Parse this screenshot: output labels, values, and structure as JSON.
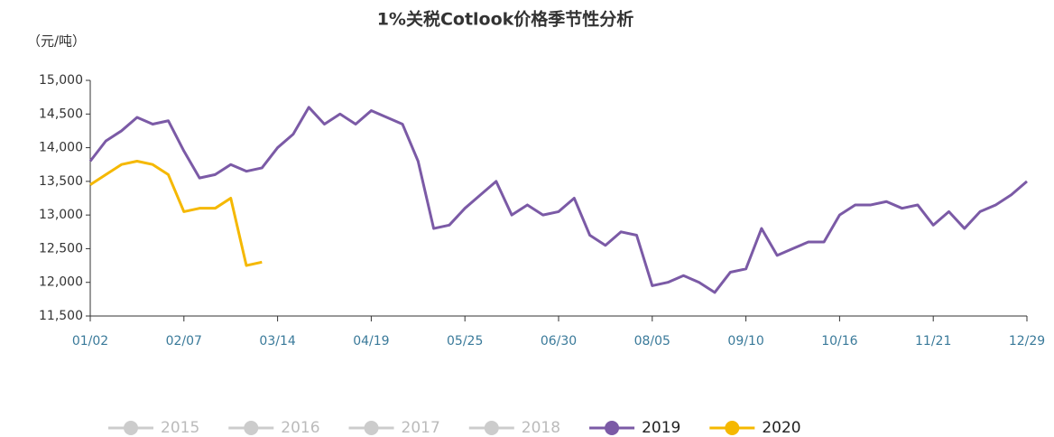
{
  "chart_data": {
    "type": "line",
    "title": "1%关税Cotlook价格季节性分析",
    "y_label": "（元/吨）",
    "categories": [
      "01/02",
      null,
      null,
      null,
      null,
      null,
      "02/07",
      null,
      null,
      null,
      null,
      null,
      "03/14",
      null,
      null,
      null,
      null,
      null,
      "04/19",
      null,
      null,
      null,
      null,
      null,
      "05/25",
      null,
      null,
      null,
      null,
      null,
      "06/30",
      null,
      null,
      null,
      null,
      null,
      "08/05",
      null,
      null,
      null,
      null,
      null,
      "09/10",
      null,
      null,
      null,
      null,
      null,
      "10/16",
      null,
      null,
      null,
      null,
      null,
      "11/21",
      null,
      null,
      null,
      null,
      null,
      "12/29"
    ],
    "series": [
      {
        "name": "2015",
        "color": "#cccccc",
        "values": [
          null,
          null,
          null,
          null,
          null,
          null,
          null,
          null,
          null,
          null,
          null,
          null,
          null,
          null,
          null,
          null,
          null,
          null,
          null,
          null,
          null,
          null,
          null,
          null,
          null,
          null,
          null,
          null,
          null,
          null,
          null,
          null,
          null,
          null,
          null,
          null,
          null,
          null,
          null,
          null,
          null,
          null,
          null,
          null,
          null,
          null,
          null,
          null,
          null,
          null,
          null,
          null,
          null,
          null,
          null,
          null,
          null,
          null,
          null,
          null,
          null
        ]
      },
      {
        "name": "2016",
        "color": "#cccccc",
        "values": [
          null,
          null,
          null,
          null,
          null,
          null,
          null,
          null,
          null,
          null,
          null,
          null,
          null,
          null,
          null,
          null,
          null,
          null,
          null,
          null,
          null,
          null,
          null,
          null,
          null,
          null,
          null,
          null,
          null,
          null,
          null,
          null,
          null,
          null,
          null,
          null,
          null,
          null,
          null,
          null,
          null,
          null,
          null,
          null,
          null,
          null,
          null,
          null,
          null,
          null,
          null,
          null,
          null,
          null,
          null,
          null,
          null,
          null,
          null,
          null,
          null
        ]
      },
      {
        "name": "2017",
        "color": "#cccccc",
        "values": [
          null,
          null,
          null,
          null,
          null,
          null,
          null,
          null,
          null,
          null,
          null,
          null,
          null,
          null,
          null,
          null,
          null,
          null,
          null,
          null,
          null,
          null,
          null,
          null,
          null,
          null,
          null,
          null,
          null,
          null,
          null,
          null,
          null,
          null,
          null,
          null,
          null,
          null,
          null,
          null,
          null,
          null,
          null,
          null,
          null,
          null,
          null,
          null,
          null,
          null,
          null,
          null,
          null,
          null,
          null,
          null,
          null,
          null,
          null,
          null,
          null
        ]
      },
      {
        "name": "2018",
        "color": "#cccccc",
        "values": [
          null,
          null,
          null,
          null,
          null,
          null,
          null,
          null,
          null,
          null,
          null,
          null,
          null,
          null,
          null,
          null,
          null,
          null,
          null,
          null,
          null,
          null,
          null,
          null,
          null,
          null,
          null,
          null,
          null,
          null,
          null,
          null,
          null,
          null,
          null,
          null,
          null,
          null,
          null,
          null,
          null,
          null,
          null,
          null,
          null,
          null,
          null,
          null,
          null,
          null,
          null,
          null,
          null,
          null,
          null,
          null,
          null,
          null,
          null,
          null,
          null
        ]
      },
      {
        "name": "2019",
        "color": "#7b5aa6",
        "values": [
          13800,
          14100,
          14250,
          14450,
          14350,
          14400,
          13950,
          13550,
          13600,
          13750,
          13650,
          13700,
          14000,
          14200,
          14600,
          14350,
          14500,
          14350,
          14550,
          14450,
          14350,
          13800,
          12800,
          12850,
          13100,
          13300,
          13500,
          13000,
          13150,
          13000,
          13050,
          13250,
          12700,
          12550,
          12750,
          12700,
          11950,
          12000,
          12100,
          12000,
          11850,
          12150,
          12200,
          12800,
          12400,
          12500,
          12600,
          12600,
          13000,
          13150,
          13150,
          13200,
          13100,
          13150,
          12850,
          13050,
          12800,
          13050,
          13150,
          13300,
          13500
        ]
      },
      {
        "name": "2020",
        "color": "#f5b800",
        "values": [
          13450,
          13600,
          13750,
          13800,
          13750,
          13600,
          13050,
          13100,
          13100,
          13250,
          12250,
          12300,
          null,
          null,
          null,
          null,
          null,
          null,
          null,
          null,
          null,
          null,
          null,
          null,
          null,
          null,
          null,
          null,
          null,
          null,
          null,
          null,
          null,
          null,
          null,
          null,
          null,
          null,
          null,
          null,
          null,
          null,
          null,
          null,
          null,
          null,
          null,
          null,
          null,
          null,
          null,
          null,
          null,
          null,
          null,
          null,
          null,
          null,
          null,
          null,
          null
        ]
      }
    ],
    "ylim": [
      11500,
      15000
    ],
    "yticks": [
      {
        "value": 11500,
        "label": "11,500"
      },
      {
        "value": 12000,
        "label": "12,000"
      },
      {
        "value": 12500,
        "label": "12,500"
      },
      {
        "value": 13000,
        "label": "13,000"
      },
      {
        "value": 13500,
        "label": "13,500"
      },
      {
        "value": 14000,
        "label": "14,000"
      },
      {
        "value": 14500,
        "label": "14,500"
      },
      {
        "value": 15000,
        "label": "15,000"
      }
    ],
    "grid": false,
    "legend": "bottom"
  }
}
